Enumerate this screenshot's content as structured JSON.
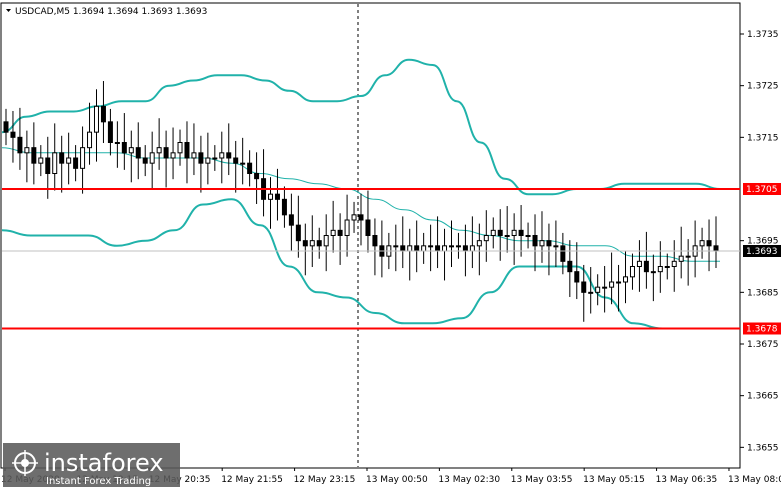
{
  "window": {
    "title": "USDCAD,M5  1.3694 1.3694 1.3693 1.3693",
    "symbol": "USDCAD,M5",
    "ohlc": "1.3694 1.3694 1.3693 1.3693"
  },
  "watermark": {
    "brand": "instaforex",
    "tagline": "Instant Forex Trading"
  },
  "colors": {
    "background": "#ffffff",
    "candle": "#000000",
    "bands": "#20b2aa",
    "support_resistance": "#ff0000",
    "current_price_badge": "#000000",
    "grid_divider": "#000000"
  },
  "chart_data": {
    "type": "candlestick",
    "title": "USDCAD,M5",
    "ylim": [
      1.3651,
      1.3741
    ],
    "y_ticks": [
      "1.3735",
      "1.3725",
      "1.3715",
      "1.3695",
      "1.3685",
      "1.3675",
      "1.3665",
      "1.3655"
    ],
    "x_ticks": [
      "12 May 2020",
      "12 May 19:15",
      "12 May 20:35",
      "12 May 21:55",
      "12 May 23:15",
      "13 May 00:50",
      "13 May 02:30",
      "13 May 03:55",
      "13 May 05:15",
      "13 May 06:35",
      "13 May 08:00"
    ],
    "current_price": "1.3693",
    "levels": [
      {
        "label": "1.3705",
        "value": 1.3705
      },
      {
        "label": "1.3678",
        "value": 1.3678
      }
    ],
    "closes": [
      1.3716,
      1.3715,
      1.3712,
      1.3713,
      1.371,
      1.3711,
      1.3708,
      1.3712,
      1.371,
      1.3711,
      1.3709,
      1.3713,
      1.3716,
      1.3721,
      1.3718,
      1.3714,
      1.3714,
      1.3712,
      1.3713,
      1.3711,
      1.371,
      1.3712,
      1.3713,
      1.3711,
      1.3712,
      1.3714,
      1.3711,
      1.3712,
      1.371,
      1.3711,
      1.3711,
      1.3712,
      1.3711,
      1.371,
      1.371,
      1.3708,
      1.3707,
      1.3703,
      1.3704,
      1.3703,
      1.37,
      1.3698,
      1.3695,
      1.3694,
      1.3695,
      1.3694,
      1.3696,
      1.3697,
      1.3696,
      1.3699,
      1.37,
      1.3699,
      1.3696,
      1.3694,
      1.3692,
      1.3694,
      1.3694,
      1.3693,
      1.3694,
      1.3693,
      1.3694,
      1.3694,
      1.3693,
      1.3694,
      1.3694,
      1.3694,
      1.3693,
      1.3694,
      1.3695,
      1.3696,
      1.3697,
      1.3696,
      1.3696,
      1.3697,
      1.3696,
      1.3696,
      1.3694,
      1.3695,
      1.3694,
      1.3694,
      1.3691,
      1.3689,
      1.3687,
      1.3685,
      1.3685,
      1.3686,
      1.3686,
      1.3687,
      1.3687,
      1.3688,
      1.369,
      1.3691,
      1.3689,
      1.3689,
      1.369,
      1.369,
      1.3691,
      1.3692,
      1.3692,
      1.3694,
      1.3695,
      1.3694,
      1.3693
    ],
    "bands_upper": [
      1.3716,
      1.3719,
      1.372,
      1.372,
      1.3721,
      1.3722,
      1.3722,
      1.3725,
      1.3726,
      1.3727,
      1.3727,
      1.3726,
      1.3724,
      1.3722,
      1.3722,
      1.3723,
      1.3727,
      1.373,
      1.3729,
      1.3722,
      1.3714,
      1.3707,
      1.3704,
      1.3704,
      1.3705,
      1.3705,
      1.3706,
      1.3706,
      1.3706,
      1.3706,
      1.3705
    ],
    "bands_middle": [
      1.3713,
      1.3712,
      1.3712,
      1.3712,
      1.3712,
      1.3711,
      1.3711,
      1.3711,
      1.371,
      1.3708,
      1.3707,
      1.3706,
      1.3705,
      1.3703,
      1.3701,
      1.3699,
      1.3697,
      1.3696,
      1.3695,
      1.3695,
      1.3694,
      1.3694,
      1.3692,
      1.3692,
      1.3691,
      1.3691
    ],
    "bands_lower": [
      1.3697,
      1.3696,
      1.3696,
      1.3696,
      1.3694,
      1.3695,
      1.3697,
      1.3702,
      1.3703,
      1.3698,
      1.369,
      1.3685,
      1.3684,
      1.3681,
      1.3679,
      1.3679,
      1.368,
      1.3685,
      1.369,
      1.369,
      1.369,
      1.3684,
      1.3679,
      1.3678,
      1.3678,
      1.3678
    ],
    "grid": false,
    "legend": "none"
  }
}
